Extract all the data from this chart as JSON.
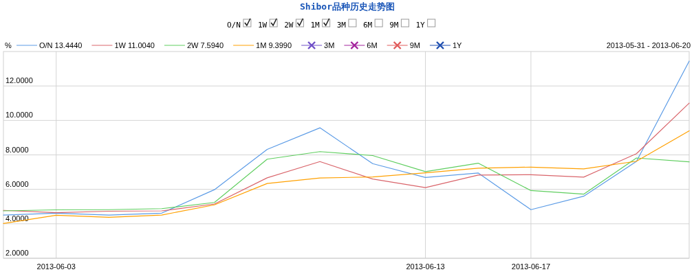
{
  "chart_data": {
    "type": "line",
    "title": "Shibor品种历史走势图",
    "ylabel": "%",
    "categories": [
      null,
      "2013-06-03",
      null,
      null,
      null,
      null,
      null,
      null,
      "2013-06-13",
      null,
      "2013-06-17",
      null,
      null,
      null
    ],
    "ylim": [
      2,
      14
    ],
    "yticks": [
      {
        "value": 2,
        "label": "2.0000"
      },
      {
        "value": 4,
        "label": "4.0000"
      },
      {
        "value": 6,
        "label": "6.0000"
      },
      {
        "value": 8,
        "label": "8.0000"
      },
      {
        "value": 10,
        "label": "10.0000"
      },
      {
        "value": 12,
        "label": "12.0000"
      }
    ],
    "grid": true,
    "legend": "top left",
    "line_style": "solid",
    "series": [
      {
        "name": "O/N 13.4440",
        "color": "#5b9be6",
        "values": [
          4.51,
          4.62,
          4.51,
          4.62,
          5.98,
          8.32,
          9.57,
          7.49,
          6.69,
          6.95,
          4.82,
          5.6,
          7.62,
          13.444
        ]
      },
      {
        "name": "1W 11.0040",
        "color": "#d9646a",
        "values": [
          4.78,
          4.65,
          4.73,
          4.75,
          5.15,
          6.67,
          7.61,
          6.6,
          6.1,
          6.83,
          6.85,
          6.71,
          8.07,
          11.004
        ]
      },
      {
        "name": "2W 7.5940",
        "color": "#5fce5f",
        "values": [
          4.75,
          4.81,
          4.82,
          4.88,
          5.24,
          7.75,
          8.19,
          7.96,
          7.03,
          7.52,
          5.93,
          5.72,
          7.82,
          7.594
        ]
      },
      {
        "name": "1M 9.3990",
        "color": "#ffa000",
        "values": [
          4.02,
          4.5,
          4.38,
          4.51,
          5.1,
          6.34,
          6.66,
          6.72,
          6.96,
          7.23,
          7.29,
          7.19,
          7.63,
          9.399
        ]
      },
      {
        "name": "3M",
        "color": "#6f4fc7",
        "marker": "cross",
        "values": [
          null,
          null,
          null,
          null,
          null,
          null,
          null,
          null,
          null,
          null,
          null,
          null,
          null,
          null
        ]
      },
      {
        "name": "6M",
        "color": "#a3239c",
        "marker": "cross",
        "values": [
          null,
          null,
          null,
          null,
          null,
          null,
          null,
          null,
          null,
          null,
          null,
          null,
          null,
          null
        ]
      },
      {
        "name": "9M",
        "color": "#e05a5a",
        "marker": "cross",
        "values": [
          null,
          null,
          null,
          null,
          null,
          null,
          null,
          null,
          null,
          null,
          null,
          null,
          null,
          null
        ]
      },
      {
        "name": "1Y",
        "color": "#1f4fb0",
        "marker": "cross",
        "values": [
          null,
          null,
          null,
          null,
          null,
          null,
          null,
          null,
          null,
          null,
          null,
          null,
          null,
          null
        ]
      }
    ],
    "annotations": [
      "O/N",
      "1W",
      "2W",
      "1M",
      "3M",
      "6M",
      "9M",
      "1Y",
      "2013-05-31 - 2013-06-20"
    ]
  }
}
